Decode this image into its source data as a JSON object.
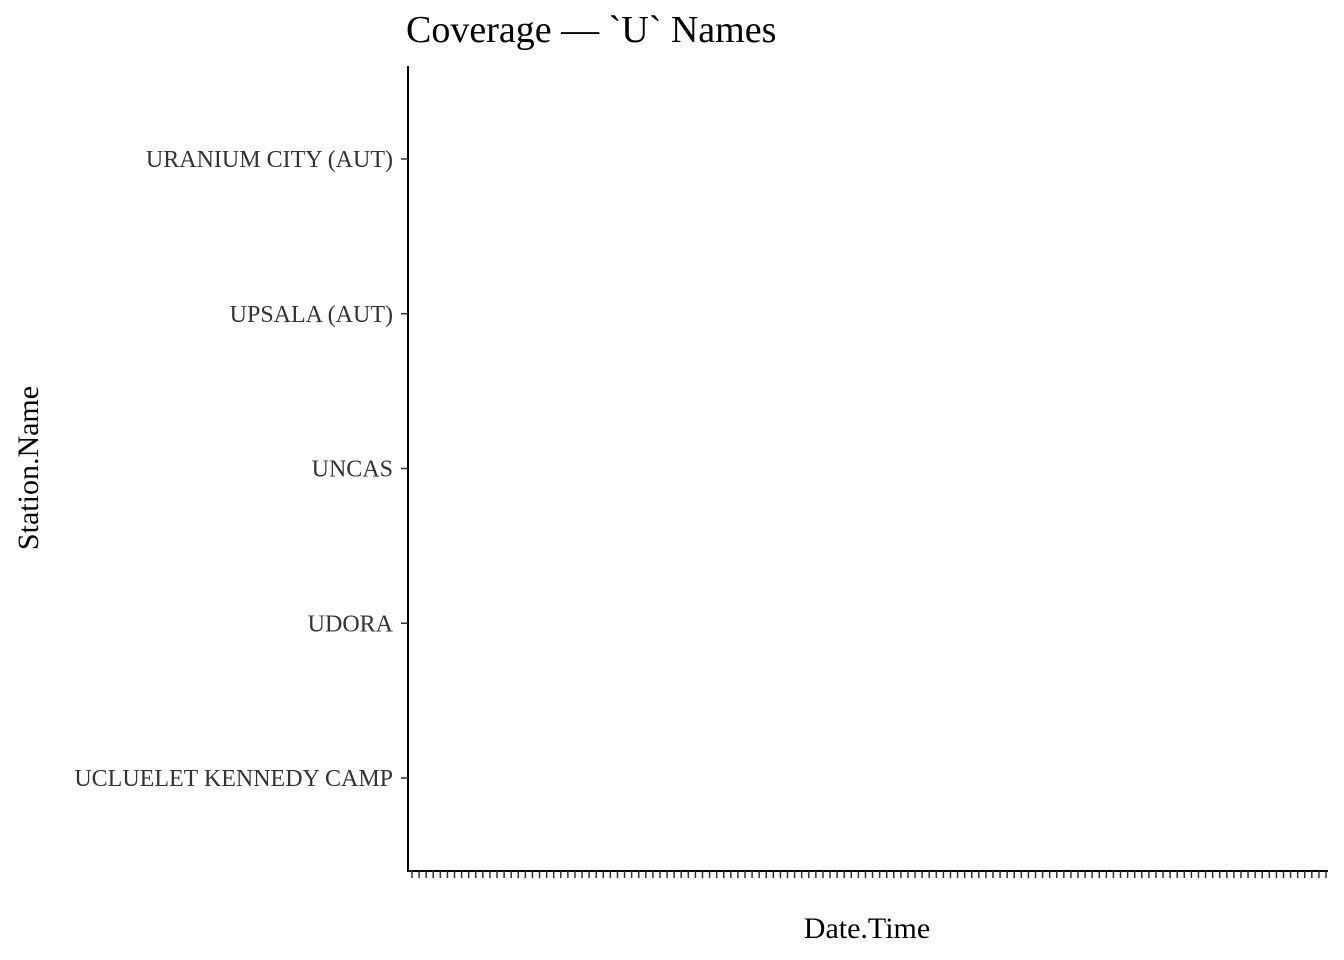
{
  "chart_data": {
    "type": "scatter",
    "title": "Coverage — `U` Names",
    "xlabel": "Date.Time",
    "ylabel": "Station.Name",
    "categories": [
      "UCLUELET KENNEDY CAMP",
      "UDORA",
      "UNCAS",
      "UPSALA (AUT)",
      "URANIUM CITY (AUT)"
    ],
    "series": [],
    "grid": false,
    "legend": "none",
    "x_tick_count": 130
  }
}
